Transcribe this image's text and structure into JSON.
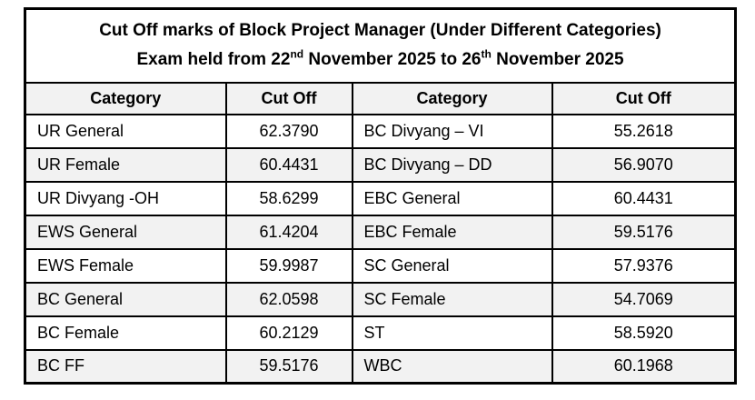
{
  "table": {
    "title_line1": "Cut Off marks of Block Project Manager (Under Different Categories)",
    "title_line2": {
      "prefix": "Exam held from 22",
      "sup1": "nd",
      "middle": " November 2025 to 26",
      "sup2": "th",
      "suffix": " November 2025"
    },
    "headers": [
      "Category",
      "Cut Off",
      "Category",
      "Cut Off"
    ],
    "rows": [
      [
        "UR General",
        "62.3790",
        "BC Divyang – VI",
        "55.2618"
      ],
      [
        "UR Female",
        "60.4431",
        "BC Divyang – DD",
        "56.9070"
      ],
      [
        "UR Divyang -OH",
        "58.6299",
        "EBC General",
        "60.4431"
      ],
      [
        "EWS General",
        "61.4204",
        "EBC Female",
        "59.5176"
      ],
      [
        "EWS Female",
        "59.9987",
        "SC General",
        "57.9376"
      ],
      [
        "BC General",
        "62.0598",
        "SC Female",
        "54.7069"
      ],
      [
        "BC Female",
        "60.2129",
        "ST",
        "58.5920"
      ],
      [
        "BC FF",
        "59.5176",
        "WBC",
        "60.1968"
      ]
    ],
    "colors": {
      "border": "#000000",
      "row_shade": "#f2f2f2",
      "text": "#000000",
      "background": "#ffffff"
    }
  }
}
